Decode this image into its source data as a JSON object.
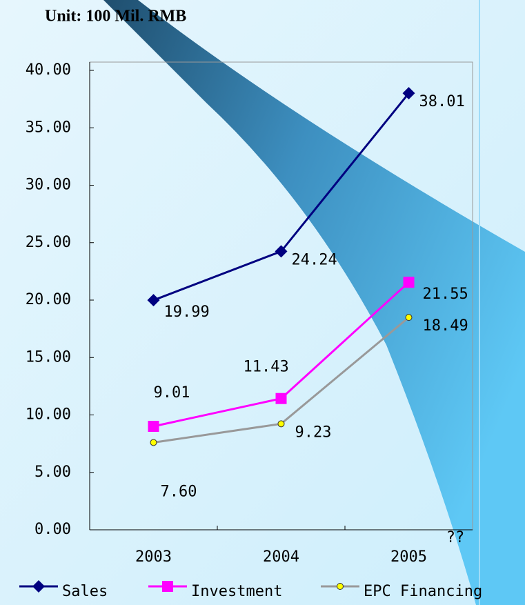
{
  "chart_data": {
    "type": "line",
    "title": "Unit: 100 Mil. RMB",
    "x_label": "??",
    "categories": [
      "2003",
      "2004",
      "2005"
    ],
    "series": [
      {
        "name": "Sales",
        "color": "#000080",
        "marker": "diamond",
        "values": [
          19.99,
          24.24,
          38.01
        ]
      },
      {
        "name": "Investment",
        "color": "#ff00ff",
        "marker": "square",
        "values": [
          9.01,
          11.43,
          21.55
        ]
      },
      {
        "name": "EPC Financing",
        "color": "#999999",
        "marker_color": "#ffff00",
        "marker": "circle",
        "values": [
          7.6,
          9.23,
          18.49
        ],
        "value_labels": [
          "7.60",
          "9.23",
          "18.49"
        ]
      }
    ],
    "ylim": [
      0,
      40
    ],
    "yticks": [
      {
        "value": 0,
        "label": "0.00"
      },
      {
        "value": 5,
        "label": "5.00"
      },
      {
        "value": 10,
        "label": "10.00"
      },
      {
        "value": 15,
        "label": "15.00"
      },
      {
        "value": 20,
        "label": "20.00"
      },
      {
        "value": 25,
        "label": "25.00"
      },
      {
        "value": 30,
        "label": "30.00"
      },
      {
        "value": 35,
        "label": "35.00"
      },
      {
        "value": 40,
        "label": "40.00"
      }
    ],
    "grid": false
  }
}
